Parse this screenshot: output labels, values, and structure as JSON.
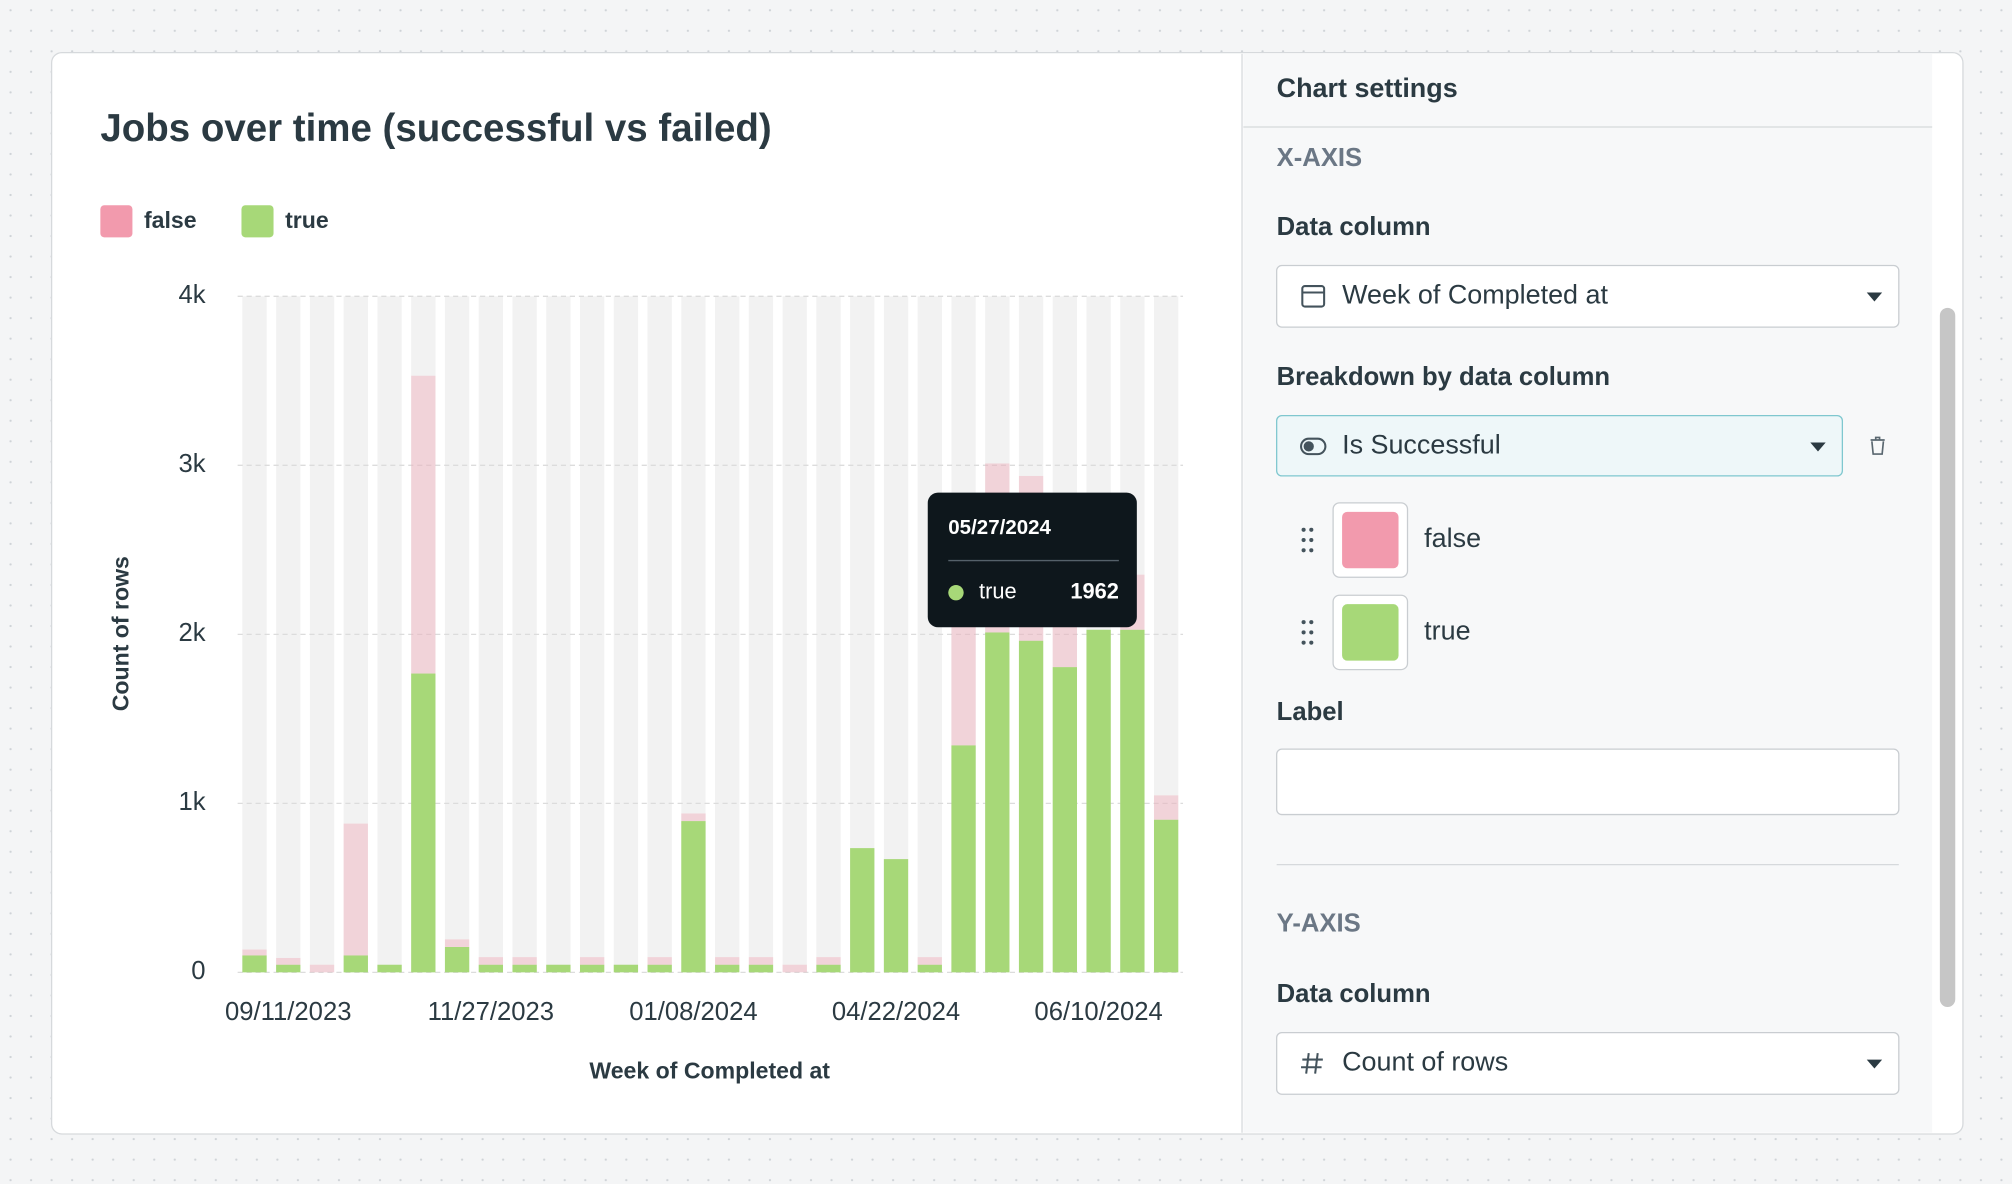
{
  "chart_data": {
    "type": "bar",
    "stacked": true,
    "title": "Jobs over time (successful vs failed)",
    "x_label": "Week of Completed at",
    "y_label": "Count of rows",
    "categories": [
      null,
      "09/11/2023",
      null,
      null,
      null,
      null,
      null,
      "11/27/2023",
      null,
      null,
      null,
      null,
      null,
      "01/08/2024",
      null,
      null,
      null,
      null,
      null,
      "04/22/2024",
      null,
      null,
      null,
      null,
      null,
      "06/10/2024",
      null,
      null
    ],
    "series": [
      {
        "name": "false",
        "color": "#f29aad",
        "values": [
          35,
          40,
          45,
          780,
          0,
          1762,
          45,
          45,
          45,
          0,
          45,
          0,
          45,
          45,
          45,
          45,
          45,
          45,
          0,
          0,
          45,
          1100,
          1000,
          975,
          350,
          0,
          326,
          144
        ]
      },
      {
        "name": "true",
        "color": "#a7d878",
        "values": [
          100,
          45,
          0,
          100,
          45,
          1768,
          150,
          45,
          45,
          45,
          45,
          45,
          45,
          895,
          45,
          45,
          0,
          45,
          735,
          670,
          45,
          1343,
          2011,
          1962,
          1806,
          2027,
          2027,
          903
        ]
      }
    ],
    "ylim": [
      0,
      4000
    ],
    "yticks": [
      0,
      {
        "value": 1000,
        "label": "1k"
      },
      {
        "value": 2000,
        "label": "2k"
      },
      {
        "value": 3000,
        "label": "3k"
      },
      {
        "value": 4000,
        "label": "4k"
      }
    ],
    "grid": true,
    "tooltip": {
      "title": "05/27/2024"
    }
  },
  "settings": {
    "title": "Chart settings",
    "x_axis": {
      "heading": "X-AXIS",
      "data_column_label": "Data column",
      "data_column": "Week of Completed at",
      "breakdown_label": "Breakdown by data column",
      "breakdown": "Is Successful",
      "label_field": "Label"
    },
    "y_axis": {
      "heading": "Y-AXIS",
      "data_column_label": "Data column",
      "data_column": "Count of rows"
    }
  }
}
